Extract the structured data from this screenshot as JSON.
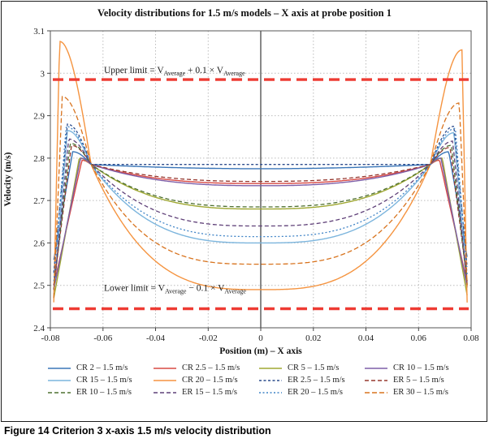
{
  "figure": {
    "caption_label": "Figure 14",
    "caption_text": "Criterion 3 x-axis 1.5 m/s velocity distribution"
  },
  "chart_data": {
    "type": "line",
    "title": "Velocity distributions for 1.5 m/s models – X axis at probe position 1",
    "xlabel": "Position (m) – X axis",
    "ylabel": "Velocity (m/s)",
    "xlim": [
      -0.08,
      0.08
    ],
    "ylim": [
      2.4,
      3.1
    ],
    "grid": true,
    "legend_position": "bottom",
    "x_ticks": [
      -0.08,
      -0.06,
      -0.04,
      -0.02,
      0,
      0.02,
      0.04,
      0.06,
      0.08
    ],
    "x_tick_labels": [
      "-0.08",
      "-0.06",
      "-0.04",
      "-0.02",
      "0",
      "0.02",
      "0.04",
      "0.06",
      "0.08"
    ],
    "y_ticks": [
      2.4,
      2.5,
      2.6,
      2.7,
      2.8,
      2.9,
      3.0,
      3.1
    ],
    "y_tick_labels": [
      "2.4",
      "2.5",
      "2.6",
      "2.7",
      "2.8",
      "2.9",
      "3",
      "3.1"
    ],
    "limits": {
      "color": "#ee3b33",
      "upper": {
        "value": 2.985,
        "label_parts": [
          "Upper limit = V",
          "Average",
          " + 0.1 × V",
          "Average"
        ]
      },
      "lower": {
        "value": 2.445,
        "label_parts": [
          "Lower limit = V",
          "Average",
          " − 0.1 × V",
          "Average"
        ]
      }
    },
    "x_cross": 0.0645,
    "v_cross": 2.785,
    "x_edge": 0.0787,
    "series": [
      {
        "name": "CR 2 – 1.5 m/s",
        "color": "#3a76b8",
        "dash": "",
        "width": 1.4,
        "center": 2.775,
        "k": 2.0,
        "x_peak": 0.0715,
        "peak_left": 2.815,
        "peak_right": 2.815,
        "edge_left": 2.56,
        "edge_right": 2.56
      },
      {
        "name": "CR 2.5 – 1.5 m/s",
        "color": "#d84a44",
        "dash": "",
        "width": 1.4,
        "center": 2.74,
        "k": 2.6,
        "x_peak": 0.068,
        "peak_left": 2.795,
        "peak_right": 2.795,
        "edge_left": 2.5,
        "edge_right": 2.5
      },
      {
        "name": "CR 5 – 1.5 m/s",
        "color": "#9fa832",
        "dash": "",
        "width": 1.4,
        "center": 2.68,
        "k": 2.8,
        "x_peak": 0.069,
        "peak_left": 2.8,
        "peak_right": 2.8,
        "edge_left": 2.47,
        "edge_right": 2.47
      },
      {
        "name": "CR 10 – 1.5 m/s",
        "color": "#7e5fa8",
        "dash": "",
        "width": 1.4,
        "center": 2.735,
        "k": 2.6,
        "x_peak": 0.0685,
        "peak_left": 2.8,
        "peak_right": 2.8,
        "edge_left": 2.49,
        "edge_right": 2.49
      },
      {
        "name": "CR 15 – 1.5 m/s",
        "color": "#7cb5dd",
        "dash": "",
        "width": 1.4,
        "center": 2.6,
        "k": 3.0,
        "x_peak": 0.0735,
        "peak_left": 2.865,
        "peak_right": 2.86,
        "edge_left": 2.48,
        "edge_right": 2.48
      },
      {
        "name": "CR 20 – 1.5 m/s",
        "color": "#f59440",
        "dash": "",
        "width": 1.4,
        "center": 2.49,
        "k": 3.1,
        "x_peak": 0.0765,
        "peak_left": 3.075,
        "peak_right": 3.055,
        "edge_left": 2.46,
        "edge_right": 2.4
      },
      {
        "name": "ER 2.5 – 1.5 m/s",
        "color": "#2b4b8c",
        "dash": "3,2.5",
        "width": 1.3,
        "center": 2.785,
        "k": 2.0,
        "x_peak": 0.0735,
        "peak_left": 2.88,
        "peak_right": 2.875,
        "edge_left": 2.53,
        "edge_right": 2.53
      },
      {
        "name": "ER 5 – 1.5 m/s",
        "color": "#96382f",
        "dash": "5,3",
        "width": 1.3,
        "center": 2.745,
        "k": 2.5,
        "x_peak": 0.072,
        "peak_left": 2.83,
        "peak_right": 2.825,
        "edge_left": 2.5,
        "edge_right": 2.5
      },
      {
        "name": "ER 10 – 1.5 m/s",
        "color": "#4f7031",
        "dash": "5,3",
        "width": 1.3,
        "center": 2.685,
        "k": 2.8,
        "x_peak": 0.0725,
        "peak_left": 2.835,
        "peak_right": 2.83,
        "edge_left": 2.49,
        "edge_right": 2.49
      },
      {
        "name": "ER 15 – 1.5 m/s",
        "color": "#5f4078",
        "dash": "5,3",
        "width": 1.3,
        "center": 2.64,
        "k": 2.9,
        "x_peak": 0.073,
        "peak_left": 2.845,
        "peak_right": 2.84,
        "edge_left": 2.49,
        "edge_right": 2.49
      },
      {
        "name": "ER 20 – 1.5 m/s",
        "color": "#3f83c6",
        "dash": "2,2.5",
        "width": 1.3,
        "center": 2.615,
        "k": 3.0,
        "x_peak": 0.074,
        "peak_left": 2.875,
        "peak_right": 2.87,
        "edge_left": 2.51,
        "edge_right": 2.51
      },
      {
        "name": "ER 30 – 1.5 m/s",
        "color": "#d8731e",
        "dash": "6,3",
        "width": 1.3,
        "center": 2.55,
        "k": 3.2,
        "x_peak": 0.0755,
        "peak_left": 2.945,
        "peak_right": 2.93,
        "edge_left": 2.47,
        "edge_right": 2.47
      }
    ]
  }
}
